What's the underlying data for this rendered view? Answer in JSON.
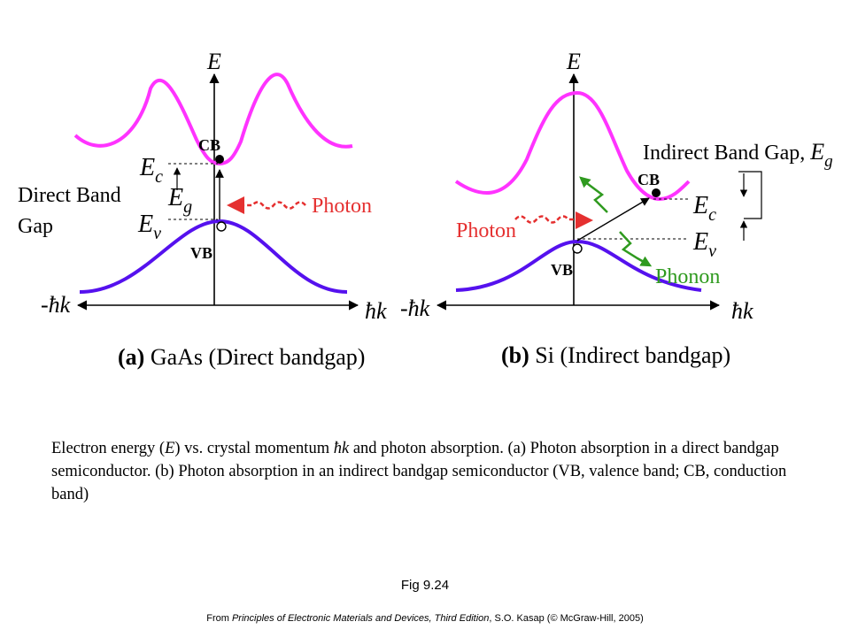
{
  "panel_a": {
    "axis_energy": "E",
    "axis_k_pos": "ħk",
    "axis_k_neg": "-ħk",
    "cb_label": "CB",
    "vb_label": "VB",
    "ec_main": "E",
    "ec_sub": "c",
    "ev_main": "E",
    "ev_sub": "v",
    "eg_main": "E",
    "eg_sub": "g",
    "gap_label_line1": "Direct Band",
    "gap_label_line2": "Gap",
    "photon_label": "Photon",
    "title_bold": "(a)",
    "title_rest": " GaAs (Direct bandgap)"
  },
  "panel_b": {
    "axis_energy": "E",
    "axis_k_pos": "ħk",
    "axis_k_neg": "-ħk",
    "cb_label": "CB",
    "vb_label": "VB",
    "ec_main": "E",
    "ec_sub": "c",
    "ev_main": "E",
    "ev_sub": "v",
    "gap_label": "Indirect Band Gap, ",
    "eg_main": "E",
    "eg_sub": "g",
    "photon_label": "Photon",
    "phonon_label": "Phonon",
    "title_bold": "(b)",
    "title_rest": " Si (Indirect bandgap)"
  },
  "colors": {
    "conduction_band": "#ff33ff",
    "valence_band": "#5511ee",
    "photon": "#e53030",
    "phonon": "#2f9a1f",
    "text": "#000000"
  },
  "caption": {
    "part1": "Electron energy (",
    "e_symbol": "E",
    "part2": ") vs. crystal momentum ",
    "hk_symbol": "ħk",
    "part3": " and photon absorption. (a) Photon absorption in a direct bandgap semiconductor. (b) Photon absorption in an indirect bandgap semiconductor (VB, valence band; CB, conduction band)"
  },
  "figure_label": "Fig 9.24",
  "credit": {
    "prefix": "From ",
    "book": "Principles of Electronic Materials and Devices, Third Edition",
    "suffix": ", S.O. Kasap (© McGraw-Hill, 2005)"
  }
}
